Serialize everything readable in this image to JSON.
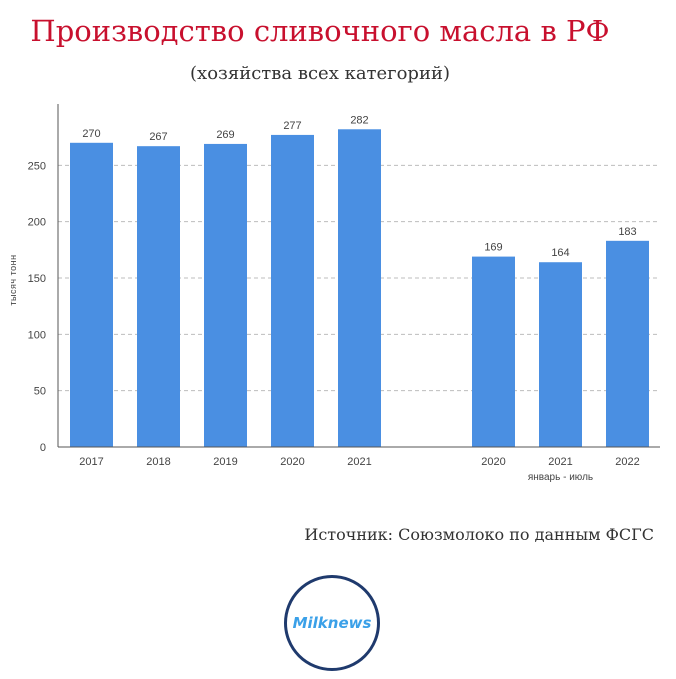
{
  "title": "Производство сливочного масла в РФ",
  "subtitle": "(хозяйства всех категорий)",
  "source": "Источник: Союзмолоко по данным ФСГС",
  "logo": "Milknews",
  "colors": {
    "bar": "#4a8fe2",
    "title": "#c8102e",
    "logo_ring": "#1f3a6d",
    "logo_text": "#3aa0e8"
  },
  "chart_data": {
    "type": "bar",
    "title": "Производство сливочного масла в РФ",
    "subtitle": "(хозяйства всех категорий)",
    "ylabel": "тысяч тонн",
    "ylim": [
      0,
      300
    ],
    "yticks": [
      0,
      50,
      100,
      150,
      200,
      250
    ],
    "grid": true,
    "groups": [
      {
        "label": "",
        "categories": [
          "2017",
          "2018",
          "2019",
          "2020",
          "2021"
        ],
        "values": [
          270,
          267,
          269,
          277,
          282
        ]
      },
      {
        "label": "январь - июль",
        "categories": [
          "2020",
          "2021",
          "2022"
        ],
        "values": [
          169,
          164,
          183
        ]
      }
    ]
  }
}
